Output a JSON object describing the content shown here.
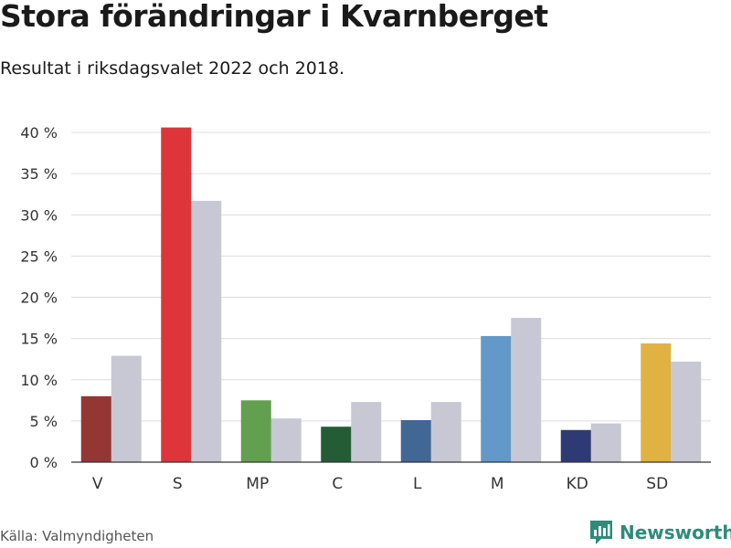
{
  "header": {
    "title": "Stora förändringar i Kvarnberget",
    "subtitle": "Resultat i riksdagsvalet 2022 och 2018."
  },
  "footer": {
    "source": "Källa: Valmyndigheten",
    "brand": "Newsworthy",
    "brand_icon": "bar-chart-logo-icon",
    "brand_color": "#2e8b7a"
  },
  "chart_data": {
    "type": "bar",
    "title": "Stora förändringar i Kvarnberget",
    "subtitle": "Resultat i riksdagsvalet 2022 och 2018.",
    "categories": [
      "V",
      "S",
      "MP",
      "C",
      "L",
      "M",
      "KD",
      "SD"
    ],
    "series": [
      {
        "name": "2022",
        "values": [
          8.0,
          40.6,
          7.5,
          4.3,
          5.1,
          15.3,
          3.9,
          14.4
        ],
        "colors": [
          "#943634",
          "#dd3539",
          "#62a04f",
          "#245c35",
          "#416795",
          "#6299c8",
          "#2e3a73",
          "#e0b241"
        ]
      },
      {
        "name": "2018",
        "values": [
          12.9,
          31.7,
          5.3,
          7.3,
          7.3,
          17.5,
          4.7,
          12.2
        ],
        "color": "#c8c8d4"
      }
    ],
    "ylim": [
      0,
      40
    ],
    "yticks": [
      0,
      5,
      10,
      15,
      20,
      25,
      30,
      35,
      40
    ],
    "ytick_labels": [
      "0 %",
      "5 %",
      "10 %",
      "15 %",
      "20 %",
      "25 %",
      "30 %",
      "35 %",
      "40 %"
    ],
    "xlabel": "",
    "ylabel": "",
    "grid": true,
    "legend": "none"
  }
}
